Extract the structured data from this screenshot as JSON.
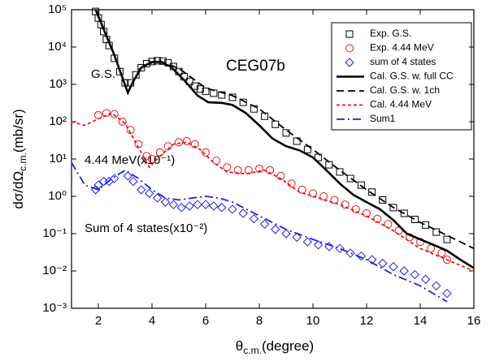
{
  "chart_data": {
    "type": "scatter",
    "log_y": true,
    "legend": "upper right",
    "xlabel": {
      "main": "θ",
      "sub": "c.m.",
      "unit": "(degree)"
    },
    "ylabel": {
      "main": "dσ/dΩ",
      "sub": "c.m.",
      "unit": "(mb/sr)"
    },
    "annotations": [
      "G.S.",
      "CEG07b",
      "4.44 MeV(x10⁻¹)",
      "Sum of 4 states(x10⁻²)"
    ],
    "xlim": [
      1,
      16
    ],
    "xticks": [
      2,
      4,
      6,
      8,
      10,
      12,
      14,
      16
    ],
    "ylim": [
      0.001,
      100000
    ],
    "yticks": [
      {
        "value": 0.001,
        "label": "10⁻³"
      },
      {
        "value": 0.01,
        "label": "10⁻²"
      },
      {
        "value": 0.1,
        "label": "10⁻¹"
      },
      {
        "value": 1,
        "label": "10⁰"
      },
      {
        "value": 10,
        "label": "10¹"
      },
      {
        "value": 100,
        "label": "10²"
      },
      {
        "value": 1000,
        "label": "10³"
      },
      {
        "value": 10000,
        "label": "10⁴"
      },
      {
        "value": 100000,
        "label": "10⁵"
      }
    ],
    "series": [
      {
        "name": "Exp. G.S.",
        "color": "#000000",
        "marker": "square",
        "x": [
          1.9,
          2.0,
          2.1,
          2.2,
          2.3,
          2.4,
          2.6,
          2.8,
          3.0,
          3.2,
          3.4,
          3.6,
          3.8,
          4.0,
          4.2,
          4.4,
          4.6,
          4.8,
          5.0,
          5.2,
          5.4,
          5.6,
          5.8,
          6.0,
          6.3,
          6.6,
          7.0,
          7.4,
          7.8,
          8.2,
          8.6,
          9.0,
          9.4,
          9.8,
          10.2,
          10.6,
          11.0,
          11.4,
          11.8,
          12.2,
          12.6,
          13.0,
          13.4,
          13.8,
          14.2,
          14.6,
          15.0
        ],
        "values": [
          90000,
          60000,
          40000,
          26000,
          16000,
          11000,
          5000,
          2200,
          1100,
          1100,
          1800,
          2800,
          3600,
          4100,
          4300,
          4200,
          3800,
          3000,
          2200,
          1600,
          1200,
          900,
          750,
          650,
          580,
          520,
          450,
          330,
          220,
          140,
          85,
          50,
          30,
          18,
          11,
          7,
          4.5,
          3,
          2,
          1.3,
          0.8,
          0.5,
          0.35,
          0.24,
          0.17,
          0.11,
          0.07
        ]
      },
      {
        "name": "Exp. 4.44 MeV",
        "color": "#e8141b",
        "marker": "circle",
        "x": [
          2.0,
          2.3,
          2.6,
          2.9,
          3.2,
          3.5,
          3.8,
          4.0,
          4.3,
          4.6,
          5.0,
          5.3,
          5.6,
          6.0,
          6.4,
          6.8,
          7.2,
          7.6,
          8.0,
          8.4,
          8.8,
          9.2,
          9.6,
          10.0,
          10.4,
          10.8,
          11.2,
          11.6,
          12.0,
          12.4,
          12.8,
          13.2,
          13.6,
          14.0,
          14.4,
          14.8,
          15.0
        ],
        "values": [
          150,
          170,
          160,
          100,
          60,
          25,
          12,
          10,
          15,
          22,
          28,
          30,
          25,
          15,
          9,
          6,
          5,
          5,
          5.5,
          5,
          3.5,
          2.2,
          1.5,
          1.2,
          1.0,
          0.8,
          0.6,
          0.45,
          0.35,
          0.25,
          0.18,
          0.12,
          0.08,
          0.06,
          0.04,
          0.03,
          0.02
        ]
      },
      {
        "name": "sum of 4 states",
        "color": "#1f1fe0",
        "marker": "diamond",
        "x": [
          1.9,
          2.0,
          2.2,
          2.4,
          2.6,
          3.1,
          3.3,
          3.6,
          3.9,
          4.2,
          4.5,
          4.8,
          5.1,
          5.4,
          5.7,
          6.0,
          6.3,
          6.6,
          7.0,
          7.4,
          7.8,
          8.2,
          8.6,
          9.0,
          9.4,
          9.8,
          10.2,
          10.6,
          11.0,
          11.4,
          11.8,
          12.2,
          12.6,
          13.0,
          13.4,
          13.8,
          14.2,
          14.6,
          15.0
        ],
        "values": [
          1.5,
          2,
          2.5,
          2.5,
          3,
          3.5,
          2.5,
          1.5,
          1.2,
          0.9,
          0.7,
          0.6,
          0.5,
          0.55,
          0.6,
          0.6,
          0.55,
          0.5,
          0.45,
          0.35,
          0.25,
          0.18,
          0.13,
          0.1,
          0.08,
          0.06,
          0.05,
          0.045,
          0.04,
          0.03,
          0.025,
          0.02,
          0.016,
          0.013,
          0.01,
          0.008,
          0.006,
          0.004,
          0.0025
        ]
      },
      {
        "name": "Cal. G.S. w. full CC",
        "color": "#000000",
        "line": "solid",
        "x": [
          1.9,
          2.2,
          2.6,
          2.9,
          3.1,
          3.3,
          3.6,
          4.0,
          4.3,
          4.7,
          5.2,
          5.7,
          6.1,
          6.6,
          7.0,
          7.5,
          8.0,
          8.5,
          9.0,
          9.5,
          10.0,
          10.5,
          11.0,
          11.5,
          12.0,
          12.5,
          13.0,
          13.5,
          14.0,
          14.5,
          15.0,
          15.5,
          16.0
        ],
        "values": [
          100000,
          30000,
          6000,
          1500,
          600,
          1200,
          2800,
          4000,
          4000,
          3000,
          1300,
          500,
          330,
          320,
          280,
          170,
          80,
          35,
          22,
          17,
          11,
          5,
          2.2,
          1.1,
          0.7,
          0.45,
          0.23,
          0.1,
          0.07,
          0.05,
          0.035,
          0.02,
          0.012
        ]
      },
      {
        "name": "Cal. G.S. w. 1ch",
        "color": "#000000",
        "line": "dash",
        "x": [
          3.5,
          4.2,
          5.0,
          6.0,
          7.0,
          8.0,
          9.0,
          10.0,
          11.0,
          12.0,
          13.0,
          14.0,
          15.0,
          15.5,
          16.0
        ],
        "values": [
          2500,
          4500,
          2700,
          800,
          500,
          220,
          60,
          18,
          5,
          1.5,
          0.5,
          0.2,
          0.09,
          0.06,
          0.04
        ]
      },
      {
        "name": "Cal. 4.44 MeV",
        "color": "#e8141b",
        "line": "dot",
        "x": [
          1.0,
          1.5,
          2.0,
          2.5,
          3.0,
          3.5,
          3.9,
          4.3,
          4.8,
          5.3,
          5.8,
          6.3,
          6.8,
          7.5,
          8.2,
          8.8,
          9.5,
          10.0,
          11.0,
          12.0,
          13.0,
          14.0,
          15.0,
          16.0
        ],
        "values": [
          100,
          80,
          120,
          170,
          90,
          20,
          6,
          12,
          25,
          28,
          18,
          8,
          4.5,
          4,
          5,
          3,
          1.3,
          1,
          0.6,
          0.3,
          0.12,
          0.04,
          0.02,
          0.01
        ]
      },
      {
        "name": "Sum1",
        "color": "#1f1fe0",
        "line": "dashdot",
        "x": [
          1.0,
          1.5,
          2.0,
          2.5,
          3.0,
          3.5,
          4.0,
          4.5,
          5.0,
          5.5,
          6.0,
          6.5,
          7.0,
          8.0,
          9.0,
          10.0,
          11.0,
          12.0,
          13.0,
          14.0,
          15.0
        ],
        "values": [
          8,
          2,
          1.5,
          3,
          5,
          3,
          1.5,
          0.9,
          0.8,
          0.9,
          1,
          0.9,
          0.7,
          0.3,
          0.13,
          0.07,
          0.04,
          0.02,
          0.008,
          0.004,
          0.0015
        ]
      }
    ]
  }
}
